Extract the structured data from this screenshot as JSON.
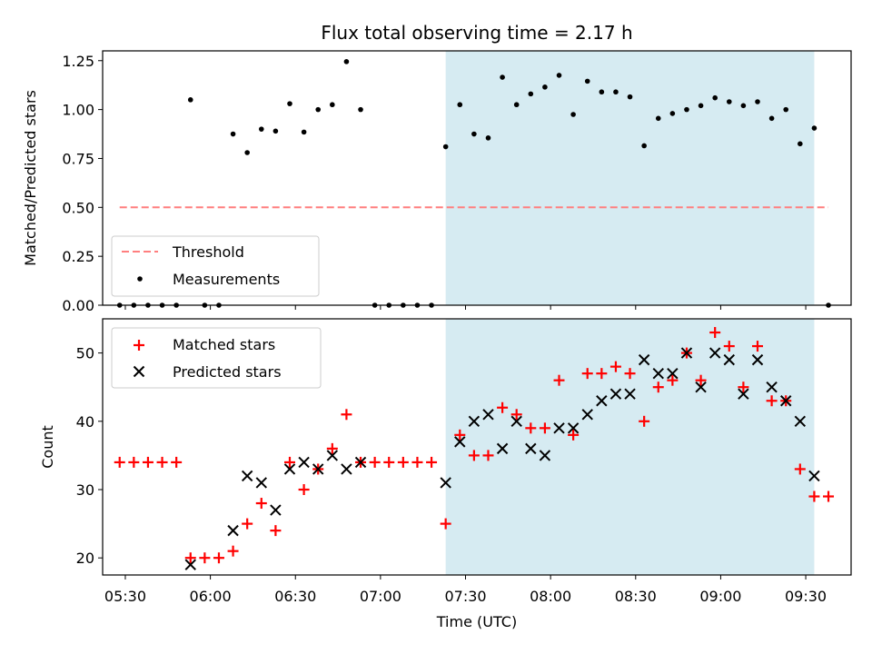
{
  "chart_data": [
    {
      "type": "scatter",
      "title": "Flux total observing time = 2.17 h",
      "xlabel": "",
      "ylabel": "Matched/Predicted stars",
      "xlim": [
        "05:22",
        "09:46"
      ],
      "ylim": [
        0,
        1.3
      ],
      "yticks": [
        "0.00",
        "0.25",
        "0.50",
        "0.75",
        "1.00",
        "1.25"
      ],
      "grid": false,
      "shaded_interval": [
        "07:23",
        "09:33"
      ],
      "shade_color": "#add8e6",
      "legend_position": "lower-left",
      "series": [
        {
          "name": "Threshold",
          "style": "dashed-line",
          "color": "#ff7f7f",
          "x": [
            "05:28",
            "09:38"
          ],
          "y": [
            0.5,
            0.5
          ]
        },
        {
          "name": "Measurements",
          "style": "dot",
          "color": "#000000",
          "x": [
            "05:28",
            "05:33",
            "05:38",
            "05:43",
            "05:48",
            "05:53",
            "05:58",
            "06:03",
            "06:08",
            "06:13",
            "06:18",
            "06:23",
            "06:28",
            "06:33",
            "06:38",
            "06:43",
            "06:48",
            "06:53",
            "06:58",
            "07:03",
            "07:08",
            "07:13",
            "07:18",
            "07:23",
            "07:28",
            "07:33",
            "07:38",
            "07:43",
            "07:48",
            "07:53",
            "07:58",
            "08:03",
            "08:08",
            "08:13",
            "08:18",
            "08:23",
            "08:28",
            "08:33",
            "08:38",
            "08:43",
            "08:48",
            "08:53",
            "08:58",
            "09:03",
            "09:08",
            "09:13",
            "09:18",
            "09:23",
            "09:28",
            "09:33",
            "09:38"
          ],
          "y": [
            0,
            0,
            0,
            0,
            0,
            1.05,
            0,
            0,
            0.875,
            0.78,
            0.9,
            0.89,
            1.03,
            0.885,
            1.0,
            1.025,
            1.245,
            1.0,
            0,
            0,
            0,
            0,
            0,
            0.81,
            1.025,
            0.875,
            0.855,
            1.165,
            1.025,
            1.08,
            1.115,
            1.175,
            0.975,
            1.145,
            1.09,
            1.09,
            1.065,
            0.815,
            0.955,
            0.98,
            1.0,
            1.02,
            1.06,
            1.04,
            1.02,
            1.04,
            0.955,
            1.0,
            0.825,
            0.905,
            0
          ]
        }
      ]
    },
    {
      "type": "scatter",
      "title": "",
      "xlabel": "Time (UTC)",
      "ylabel": "Count",
      "xlim": [
        "05:22",
        "09:46"
      ],
      "ylim": [
        17.5,
        55
      ],
      "yticks": [
        "20",
        "30",
        "40",
        "50"
      ],
      "xticks": [
        "05:30",
        "06:00",
        "06:30",
        "07:00",
        "07:30",
        "08:00",
        "08:30",
        "09:00",
        "09:30"
      ],
      "grid": false,
      "shaded_interval": [
        "07:23",
        "09:33"
      ],
      "shade_color": "#add8e6",
      "legend_position": "upper-left",
      "series": [
        {
          "name": "Matched stars",
          "marker": "plus",
          "color": "#ff0000",
          "x": [
            "05:28",
            "05:33",
            "05:38",
            "05:43",
            "05:48",
            "05:53",
            "05:58",
            "06:03",
            "06:08",
            "06:13",
            "06:18",
            "06:23",
            "06:28",
            "06:33",
            "06:38",
            "06:43",
            "06:48",
            "06:53",
            "06:58",
            "07:03",
            "07:08",
            "07:13",
            "07:18",
            "07:23",
            "07:28",
            "07:33",
            "07:38",
            "07:43",
            "07:48",
            "07:53",
            "07:58",
            "08:03",
            "08:08",
            "08:13",
            "08:18",
            "08:23",
            "08:28",
            "08:33",
            "08:38",
            "08:43",
            "08:48",
            "08:53",
            "08:58",
            "09:03",
            "09:08",
            "09:13",
            "09:18",
            "09:23",
            "09:28",
            "09:33",
            "09:38"
          ],
          "y": [
            34,
            34,
            34,
            34,
            34,
            20,
            20,
            20,
            21,
            25,
            28,
            24,
            34,
            30,
            33,
            36,
            41,
            34,
            34,
            34,
            34,
            34,
            34,
            25,
            38,
            35,
            35,
            42,
            41,
            39,
            39,
            46,
            38,
            47,
            47,
            48,
            47,
            40,
            45,
            46,
            50,
            46,
            53,
            51,
            45,
            51,
            43,
            43,
            33,
            29,
            29
          ]
        },
        {
          "name": "Predicted stars",
          "marker": "x",
          "color": "#000000",
          "x": [
            "05:53",
            "06:08",
            "06:13",
            "06:18",
            "06:23",
            "06:28",
            "06:33",
            "06:38",
            "06:43",
            "06:48",
            "06:53",
            "07:23",
            "07:28",
            "07:33",
            "07:38",
            "07:43",
            "07:48",
            "07:53",
            "07:58",
            "08:03",
            "08:08",
            "08:13",
            "08:18",
            "08:23",
            "08:28",
            "08:33",
            "08:38",
            "08:43",
            "08:48",
            "08:53",
            "08:58",
            "09:03",
            "09:08",
            "09:13",
            "09:18",
            "09:23",
            "09:28",
            "09:33"
          ],
          "y": [
            19,
            24,
            32,
            31,
            27,
            33,
            34,
            33,
            35,
            33,
            34,
            31,
            37,
            40,
            41,
            36,
            40,
            36,
            35,
            39,
            39,
            41,
            43,
            44,
            44,
            49,
            47,
            47,
            50,
            45,
            50,
            49,
            44,
            49,
            45,
            43,
            40,
            32
          ]
        }
      ]
    }
  ]
}
